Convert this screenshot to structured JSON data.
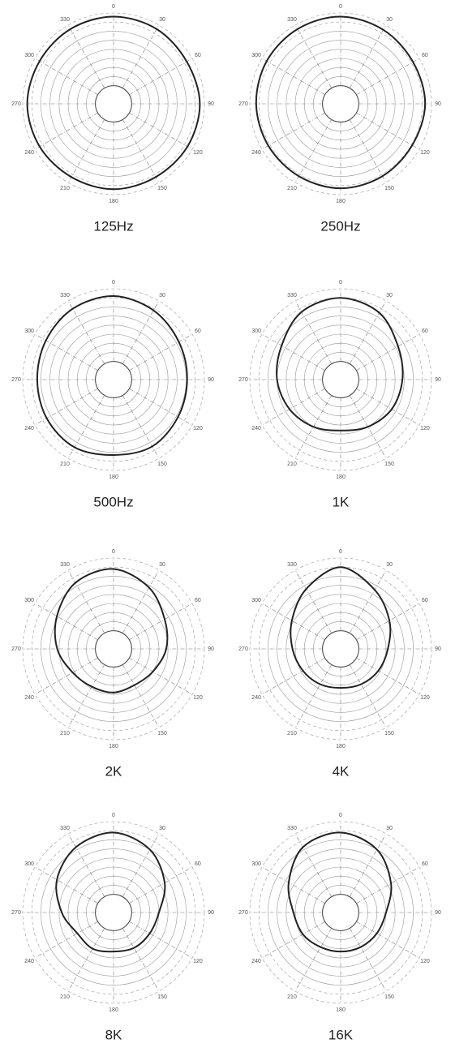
{
  "chart_data": [
    {
      "type": "polar",
      "title": "125Hz",
      "color": "#222222",
      "rlim": [
        0,
        10
      ],
      "rticks": [
        2,
        3,
        4,
        5,
        6,
        7,
        8,
        9,
        10
      ],
      "thetaticks": [
        0,
        30,
        60,
        90,
        120,
        150,
        180,
        210,
        240,
        270,
        300,
        330
      ],
      "theta": [
        0,
        30,
        60,
        90,
        120,
        150,
        180,
        210,
        240,
        270,
        300,
        330
      ],
      "values": [
        9.6,
        9.5,
        9.3,
        9.5,
        9.4,
        9.3,
        9.4,
        9.3,
        9.4,
        9.5,
        9.4,
        9.5
      ]
    },
    {
      "type": "polar",
      "title": "250Hz",
      "color": "#222222",
      "rlim": [
        0,
        10
      ],
      "rticks": [
        2,
        3,
        4,
        5,
        6,
        7,
        8,
        9,
        10
      ],
      "thetaticks": [
        0,
        30,
        60,
        90,
        120,
        150,
        180,
        210,
        240,
        270,
        300,
        330
      ],
      "theta": [
        0,
        30,
        60,
        90,
        120,
        150,
        180,
        210,
        240,
        270,
        300,
        330
      ],
      "values": [
        9.6,
        9.4,
        9.2,
        9.3,
        9.1,
        9.2,
        9.3,
        9.2,
        9.2,
        9.3,
        9.4,
        9.5
      ]
    },
    {
      "type": "polar",
      "title": "500Hz",
      "color": "#222222",
      "rlim": [
        0,
        10
      ],
      "rticks": [
        2,
        3,
        4,
        5,
        6,
        7,
        8,
        9,
        10
      ],
      "thetaticks": [
        0,
        30,
        60,
        90,
        120,
        150,
        180,
        210,
        240,
        270,
        300,
        330
      ],
      "theta": [
        0,
        30,
        60,
        90,
        120,
        150,
        180,
        210,
        240,
        270,
        300,
        330
      ],
      "values": [
        9.2,
        8.8,
        8.3,
        8.1,
        8.2,
        8.5,
        8.3,
        8.6,
        8.5,
        8.4,
        8.6,
        9.0
      ]
    },
    {
      "type": "polar",
      "title": "1K",
      "color": "#222222",
      "rlim": [
        0,
        10
      ],
      "rticks": [
        2,
        3,
        4,
        5,
        6,
        7,
        8,
        9,
        10
      ],
      "thetaticks": [
        0,
        30,
        60,
        90,
        120,
        150,
        180,
        210,
        240,
        270,
        300,
        330
      ],
      "theta": [
        0,
        30,
        60,
        90,
        120,
        150,
        180,
        210,
        240,
        270,
        300,
        330
      ],
      "values": [
        9.0,
        8.5,
        7.3,
        6.8,
        6.5,
        6.0,
        5.6,
        6.0,
        6.5,
        7.0,
        7.5,
        8.6
      ]
    },
    {
      "type": "polar",
      "title": "2K",
      "color": "#222222",
      "rlim": [
        0,
        10
      ],
      "rticks": [
        2,
        3,
        4,
        5,
        6,
        7,
        8,
        9,
        10
      ],
      "thetaticks": [
        0,
        30,
        60,
        90,
        120,
        150,
        180,
        210,
        240,
        270,
        300,
        330
      ],
      "theta": [
        0,
        30,
        60,
        90,
        120,
        150,
        180,
        210,
        240,
        270,
        300,
        330
      ],
      "values": [
        8.8,
        7.8,
        6.5,
        5.8,
        5.0,
        4.6,
        4.8,
        4.8,
        5.2,
        6.2,
        7.2,
        8.4
      ]
    },
    {
      "type": "polar",
      "title": "4K",
      "color": "#222222",
      "rlim": [
        0,
        10
      ],
      "rticks": [
        2,
        3,
        4,
        5,
        6,
        7,
        8,
        9,
        10
      ],
      "thetaticks": [
        0,
        30,
        60,
        90,
        120,
        150,
        180,
        210,
        240,
        270,
        300,
        330
      ],
      "theta": [
        0,
        30,
        60,
        90,
        120,
        150,
        180,
        210,
        240,
        270,
        300,
        330
      ],
      "values": [
        9.0,
        7.5,
        6.2,
        5.2,
        4.8,
        4.5,
        4.3,
        4.5,
        4.8,
        5.3,
        6.2,
        7.6
      ]
    },
    {
      "type": "polar",
      "title": "8K",
      "color": "#222222",
      "rlim": [
        0,
        10
      ],
      "rticks": [
        2,
        3,
        4,
        5,
        6,
        7,
        8,
        9,
        10
      ],
      "thetaticks": [
        0,
        30,
        60,
        90,
        120,
        150,
        180,
        210,
        240,
        270,
        300,
        330
      ],
      "theta": [
        0,
        30,
        60,
        90,
        120,
        150,
        180,
        210,
        240,
        270,
        300,
        330
      ],
      "values": [
        8.8,
        8.0,
        6.5,
        5.0,
        4.6,
        4.5,
        4.3,
        4.6,
        4.6,
        5.7,
        7.2,
        8.3
      ]
    },
    {
      "type": "polar",
      "title": "16K",
      "color": "#222222",
      "rlim": [
        0,
        10
      ],
      "rticks": [
        2,
        3,
        4,
        5,
        6,
        7,
        8,
        9,
        10
      ],
      "thetaticks": [
        0,
        30,
        60,
        90,
        120,
        150,
        180,
        210,
        240,
        270,
        300,
        330
      ],
      "theta": [
        0,
        30,
        60,
        90,
        120,
        150,
        180,
        210,
        240,
        270,
        300,
        330
      ],
      "values": [
        8.8,
        8.0,
        6.4,
        5.0,
        4.6,
        4.4,
        4.3,
        4.4,
        4.8,
        5.2,
        6.6,
        8.3
      ]
    }
  ]
}
